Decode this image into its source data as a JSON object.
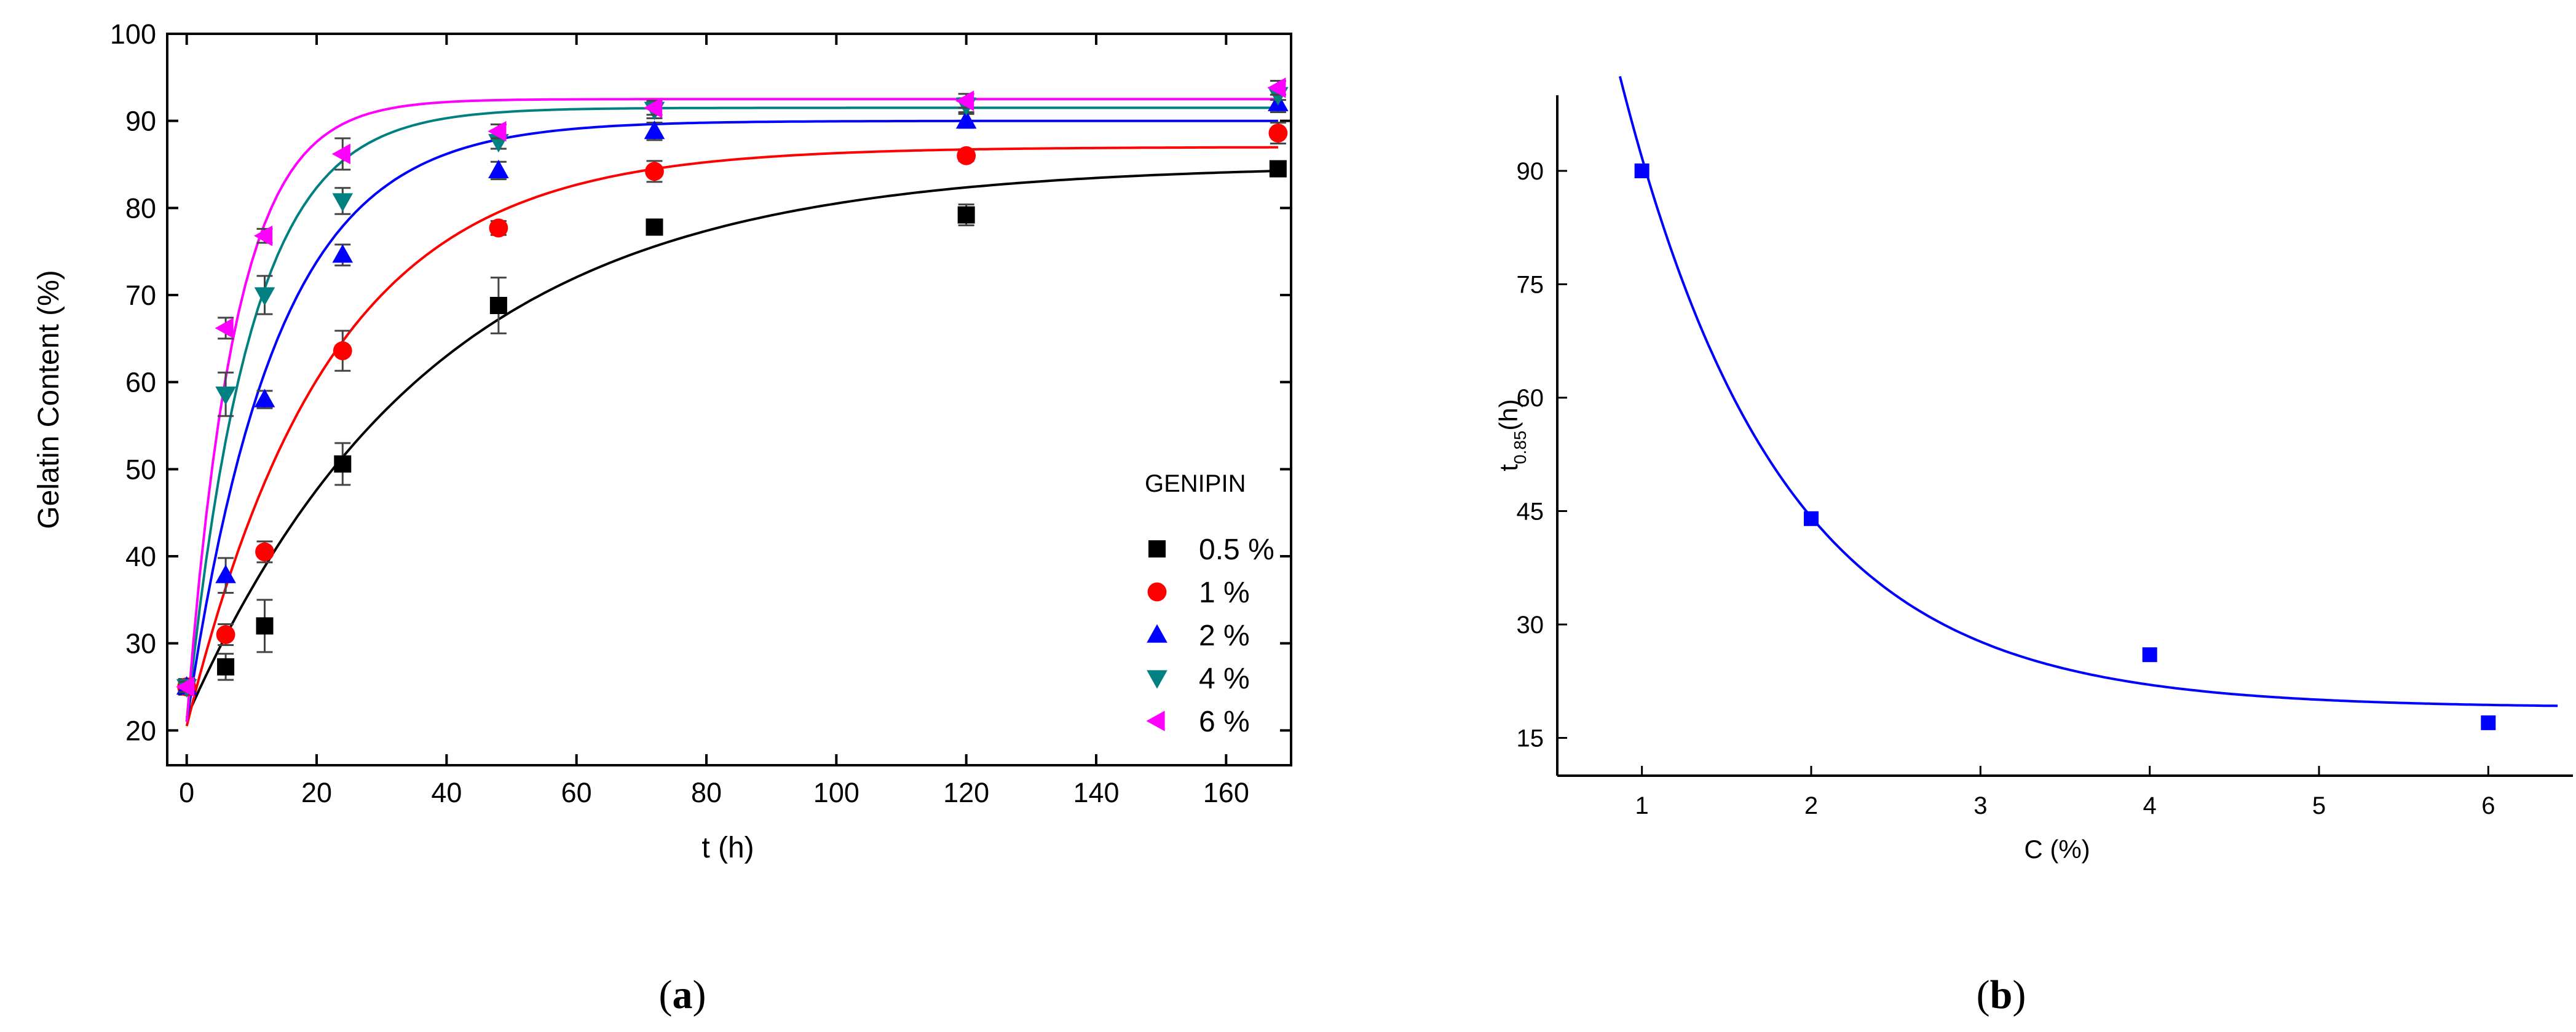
{
  "chart_data": [
    {
      "type": "scatter",
      "panel": "a",
      "title": "",
      "xlabel": "t (h)",
      "ylabel": "Gelatin Content (%)",
      "xlim": [
        -3,
        170
      ],
      "ylim": [
        16,
        100
      ],
      "xticks": [
        0,
        20,
        40,
        60,
        80,
        100,
        120,
        140,
        160
      ],
      "yticks": [
        20,
        30,
        40,
        50,
        60,
        70,
        80,
        90,
        100
      ],
      "legend_title": "GENIPIN",
      "legend_position": "right",
      "series": [
        {
          "name": "0.5 %",
          "color": "#000000",
          "marker": "square",
          "x": [
            0,
            6,
            12,
            24,
            48,
            72,
            120,
            168
          ],
          "y": [
            25,
            27.3,
            32,
            50.6,
            68.8,
            77.8,
            79.2,
            84.5
          ],
          "err": [
            0.8,
            1.5,
            3,
            2.4,
            3.2,
            0.8,
            1.2,
            0.8
          ],
          "fit": {
            "y0": 21.5,
            "ymax": 85.0,
            "k": 0.0265
          }
        },
        {
          "name": "1 %",
          "color": "#ff0000",
          "marker": "circle",
          "x": [
            0,
            6,
            12,
            24,
            48,
            72,
            120,
            168
          ],
          "y": [
            25,
            31,
            40.5,
            63.6,
            77.7,
            84.2,
            86,
            88.6
          ],
          "err": [
            0.8,
            1.2,
            1.2,
            2.3,
            0.8,
            1.2,
            0.6,
            1.2
          ],
          "fit": {
            "y0": 20.5,
            "ymax": 87.0,
            "k": 0.0455
          }
        },
        {
          "name": "2 %",
          "color": "#0000ff",
          "marker": "triangle-up",
          "x": [
            0,
            6,
            12,
            24,
            48,
            72,
            120,
            168
          ],
          "y": [
            25,
            37.8,
            58,
            74.6,
            84.3,
            88.8,
            90,
            92
          ],
          "err": [
            0.6,
            2,
            1,
            1.2,
            1,
            1,
            0.8,
            1
          ],
          "fit": {
            "y0": 21.0,
            "ymax": 90.0,
            "k": 0.0725
          }
        },
        {
          "name": "4 %",
          "color": "#008080",
          "marker": "triangle-down",
          "x": [
            0,
            6,
            12,
            24,
            48,
            72,
            120,
            168
          ],
          "y": [
            25,
            58.6,
            70,
            80.8,
            87.6,
            91.3,
            91.8,
            93
          ],
          "err": [
            0.6,
            2.5,
            2.2,
            1.5,
            0.8,
            1,
            0.8,
            0.6
          ],
          "fit": {
            "y0": 21.0,
            "ymax": 91.5,
            "k": 0.102
          }
        },
        {
          "name": "6 %",
          "color": "#ff00ff",
          "marker": "triangle-left",
          "x": [
            0,
            6,
            12,
            24,
            48,
            72,
            120,
            168
          ],
          "y": [
            25,
            66.2,
            76.8,
            86.2,
            88.8,
            91.5,
            92.3,
            93.8
          ],
          "err": [
            0.6,
            1.2,
            0.8,
            1.8,
            0.8,
            0.8,
            0.8,
            0.8
          ],
          "fit": {
            "y0": 21.0,
            "ymax": 92.5,
            "k": 0.134
          }
        }
      ]
    },
    {
      "type": "scatter",
      "panel": "b",
      "title": "",
      "xlabel": "C (%)",
      "ylabel": "t",
      "ylabel_subscript": "0.85",
      "ylabel_suffix": "(h)",
      "xlim": [
        0.5,
        6.5
      ],
      "ylim": [
        10,
        100
      ],
      "xticks": [
        1,
        2,
        3,
        4,
        5,
        6
      ],
      "yticks": [
        15,
        30,
        45,
        60,
        75,
        90
      ],
      "series": [
        {
          "name": "t0.85",
          "color": "#0000ff",
          "marker": "square",
          "x": [
            1,
            2,
            4,
            6
          ],
          "y": [
            90,
            44,
            26,
            17
          ],
          "fit": {
            "a": 19.0,
            "b": 210,
            "c": 1.06,
            "x_from": 0.87,
            "x_to": 6.42
          }
        }
      ]
    }
  ],
  "captions": {
    "a": {
      "open": "(",
      "letter": "a",
      "close": ")"
    },
    "b": {
      "open": "(",
      "letter": "b",
      "close": ")"
    }
  }
}
